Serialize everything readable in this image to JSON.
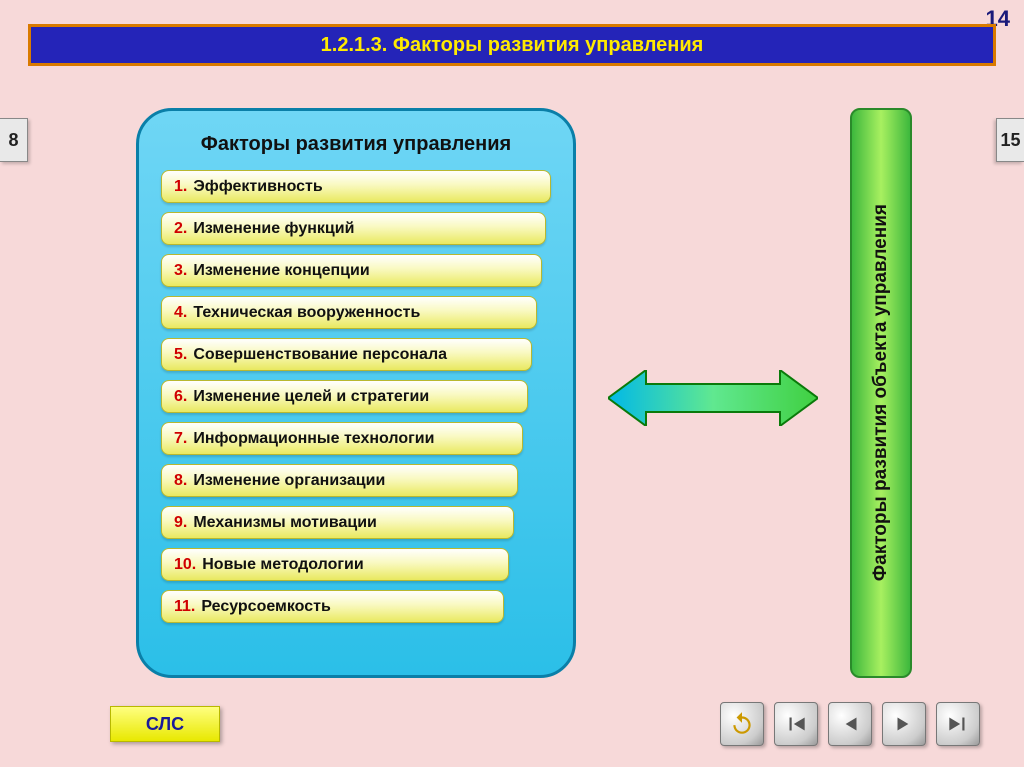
{
  "slide_number": "14",
  "title": "1.2.1.3. Факторы развития управления",
  "nav_left": "8",
  "nav_right": "15",
  "main_panel": {
    "title": "Факторы развития управления",
    "bg_gradient_top": "#6fd6f5",
    "bg_gradient_bottom": "#2bbfe8",
    "border_color": "#0a7fa8",
    "item_bg_top": "#ffffff",
    "item_bg_mid": "#f9f9c0",
    "item_bg_bottom": "#e9e960",
    "num_color": "#d00000",
    "items": [
      {
        "num": "1.",
        "text": "Эффективность"
      },
      {
        "num": "2.",
        "text": "Изменение функций"
      },
      {
        "num": "3.",
        "text": "Изменение концепции"
      },
      {
        "num": "4.",
        "text": "Техническая вооруженность"
      },
      {
        "num": "5.",
        "text": "Совершенствование персонала"
      },
      {
        "num": "6.",
        "text": "Изменение целей и стратегии"
      },
      {
        "num": "7.",
        "text": "Информационные технологии"
      },
      {
        "num": "8.",
        "text": "Изменение организации"
      },
      {
        "num": "9.",
        "text": "Механизмы мотивации"
      },
      {
        "num": "10.",
        "text": "Новые методологии"
      },
      {
        "num": "11.",
        "text": "Ресурсоемкость"
      }
    ]
  },
  "side_panel": {
    "text": "Факторы развития объекта управления",
    "bg_left": "#3db83d",
    "bg_mid": "#a8f060",
    "border": "#2a8a2a"
  },
  "arrow": {
    "fill_left": "#00b8e8",
    "fill_right": "#40d040",
    "stroke": "#0a7a0a"
  },
  "sls_label": "СЛС",
  "title_bar": {
    "bg": "#2424b8",
    "border": "#d97a00",
    "text_color": "#ffea00"
  },
  "page_bg": "#f7d9d9",
  "nav_icon_color": "#555555"
}
